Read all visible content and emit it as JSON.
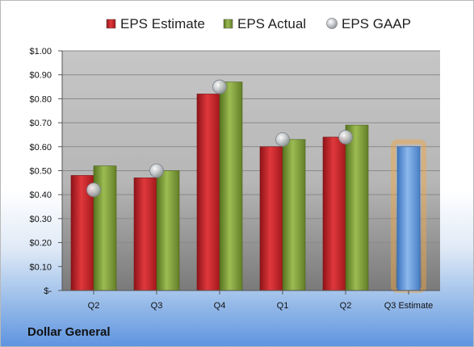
{
  "company_name": "Dollar General",
  "colors": {
    "estimate": "#c0262b",
    "actual": "#7a9a38",
    "gaap": "#b5b9bf",
    "future_estimate": "#5b93d6",
    "future_glow": "#f4a640"
  },
  "chart_data": {
    "type": "bar",
    "categories": [
      "Q2",
      "Q3",
      "Q4",
      "Q1",
      "Q2",
      "Q3 Estimate"
    ],
    "series": [
      {
        "name": "EPS Estimate",
        "values": [
          0.48,
          0.47,
          0.82,
          0.6,
          0.64,
          0.6
        ],
        "marker": "bar"
      },
      {
        "name": "EPS Actual",
        "values": [
          0.52,
          0.5,
          0.87,
          0.63,
          0.69,
          null
        ],
        "marker": "bar"
      },
      {
        "name": "EPS GAAP",
        "values": [
          0.42,
          0.5,
          0.85,
          0.63,
          0.64,
          null
        ],
        "marker": "bubble"
      }
    ],
    "ylim": [
      0,
      1.0
    ],
    "yticks": [
      "$-",
      "$0.10",
      "$0.20",
      "$0.30",
      "$0.40",
      "$0.50",
      "$0.60",
      "$0.70",
      "$0.80",
      "$0.90",
      "$1.00"
    ],
    "grid": true,
    "legend_position": "top",
    "title": "",
    "xlabel": "",
    "ylabel": ""
  }
}
